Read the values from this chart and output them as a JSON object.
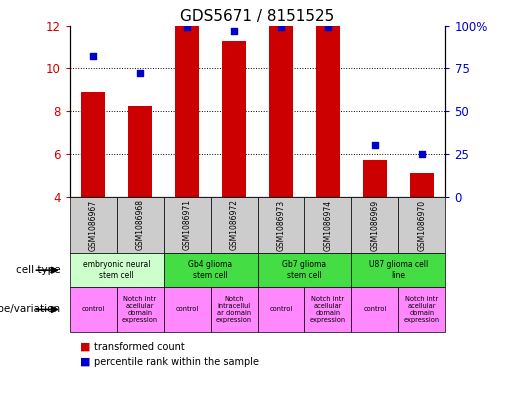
{
  "title": "GDS5671 / 8151525",
  "samples": [
    "GSM1086967",
    "GSM1086968",
    "GSM1086971",
    "GSM1086972",
    "GSM1086973",
    "GSM1086974",
    "GSM1086969",
    "GSM1086970"
  ],
  "transformed_count": [
    8.9,
    8.25,
    12.0,
    11.3,
    12.0,
    12.0,
    5.7,
    5.1
  ],
  "percentile_rank": [
    82,
    72,
    99,
    97,
    99,
    99,
    30,
    25
  ],
  "ylim_left": [
    4,
    12
  ],
  "ylim_right": [
    0,
    100
  ],
  "yticks_left": [
    4,
    6,
    8,
    10,
    12
  ],
  "yticks_right": [
    0,
    25,
    50,
    75,
    100
  ],
  "bar_color": "#cc0000",
  "dot_color": "#0000cc",
  "bar_bottom": 4.0,
  "cell_types": [
    {
      "label": "embryonic neural\nstem cell",
      "start": 0,
      "end": 2,
      "color": "#ccffcc"
    },
    {
      "label": "Gb4 glioma\nstem cell",
      "start": 2,
      "end": 4,
      "color": "#44dd44"
    },
    {
      "label": "Gb7 glioma\nstem cell",
      "start": 4,
      "end": 6,
      "color": "#44dd44"
    },
    {
      "label": "U87 glioma cell\nline",
      "start": 6,
      "end": 8,
      "color": "#44dd44"
    }
  ],
  "genotypes": [
    {
      "label": "control",
      "start": 0,
      "end": 1
    },
    {
      "label": "Notch intr\nacellular\ndomain\nexpression",
      "start": 1,
      "end": 2
    },
    {
      "label": "control",
      "start": 2,
      "end": 3
    },
    {
      "label": "Notch\nintracellul\nar domain\nexpression",
      "start": 3,
      "end": 4
    },
    {
      "label": "control",
      "start": 4,
      "end": 5
    },
    {
      "label": "Notch intr\nacellular\ndomain\nexpression",
      "start": 5,
      "end": 6
    },
    {
      "label": "control",
      "start": 6,
      "end": 7
    },
    {
      "label": "Notch intr\nacellular\ndomain\nexpression",
      "start": 7,
      "end": 8
    }
  ],
  "genotype_color": "#ff88ff",
  "sample_box_color": "#cccccc",
  "grid_color": "#000000",
  "tick_color_left": "#cc0000",
  "tick_color_right": "#0000cc",
  "title_fontsize": 11,
  "bar_width": 0.5,
  "dot_size": 18
}
